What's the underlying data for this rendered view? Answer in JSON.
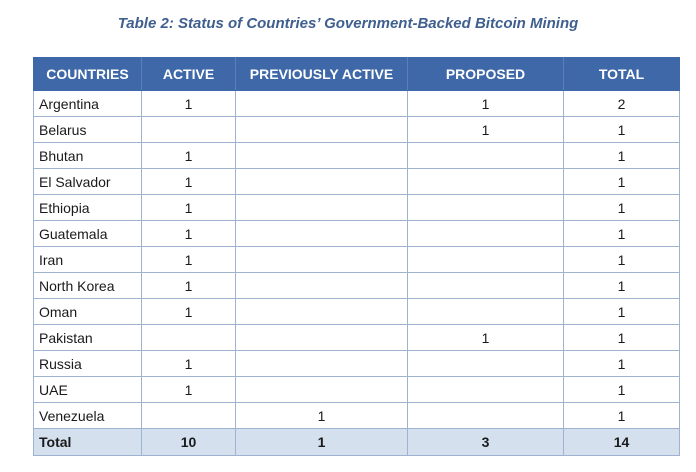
{
  "caption": "Table 2: Status of Countries’ Government-Backed Bitcoin Mining",
  "headers": [
    "COUNTRIES",
    "ACTIVE",
    "PREVIOUSLY ACTIVE",
    "PROPOSED",
    "TOTAL"
  ],
  "rows": [
    [
      "Argentina",
      "1",
      "",
      "1",
      "2"
    ],
    [
      "Belarus",
      "",
      "",
      "1",
      "1"
    ],
    [
      "Bhutan",
      "1",
      "",
      "",
      "1"
    ],
    [
      "El Salvador",
      "1",
      "",
      "",
      "1"
    ],
    [
      "Ethiopia",
      "1",
      "",
      "",
      "1"
    ],
    [
      "Guatemala",
      "1",
      "",
      "",
      "1"
    ],
    [
      "Iran",
      "1",
      "",
      "",
      "1"
    ],
    [
      "North Korea",
      "1",
      "",
      "",
      "1"
    ],
    [
      "Oman",
      "1",
      "",
      "",
      "1"
    ],
    [
      "Pakistan",
      "",
      "",
      "1",
      "1"
    ],
    [
      "Russia",
      "1",
      "",
      "",
      "1"
    ],
    [
      "UAE",
      "1",
      "",
      "",
      "1"
    ],
    [
      "Venezuela",
      "",
      "1",
      "",
      "1"
    ]
  ],
  "total_row": [
    "Total",
    "10",
    "1",
    "3",
    "14"
  ],
  "colors": {
    "header_bg": "#3f68a8",
    "caption": "#3f5f8f",
    "total_bg": "#d5e0ef",
    "border": "#9fb3d1"
  }
}
